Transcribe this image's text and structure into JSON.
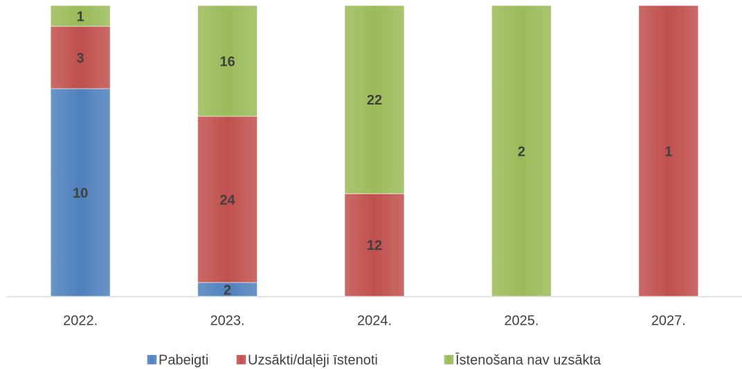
{
  "chart_data": {
    "type": "bar",
    "stacked": "percent",
    "categories": [
      "2022.",
      "2023.",
      "2024.",
      "2025.",
      "2027."
    ],
    "series": [
      {
        "name": "Pabeigti",
        "color": "#4f81bd",
        "values": [
          10,
          2,
          null,
          null,
          null
        ]
      },
      {
        "name": "Uzsākti/daļēji īstenoti",
        "color": "#c0504d",
        "values": [
          3,
          24,
          12,
          null,
          1
        ]
      },
      {
        "name": "Īstenošana nav uzsākta",
        "color": "#9bbb59",
        "values": [
          1,
          16,
          22,
          2,
          null
        ]
      }
    ],
    "legend": "bottom"
  }
}
